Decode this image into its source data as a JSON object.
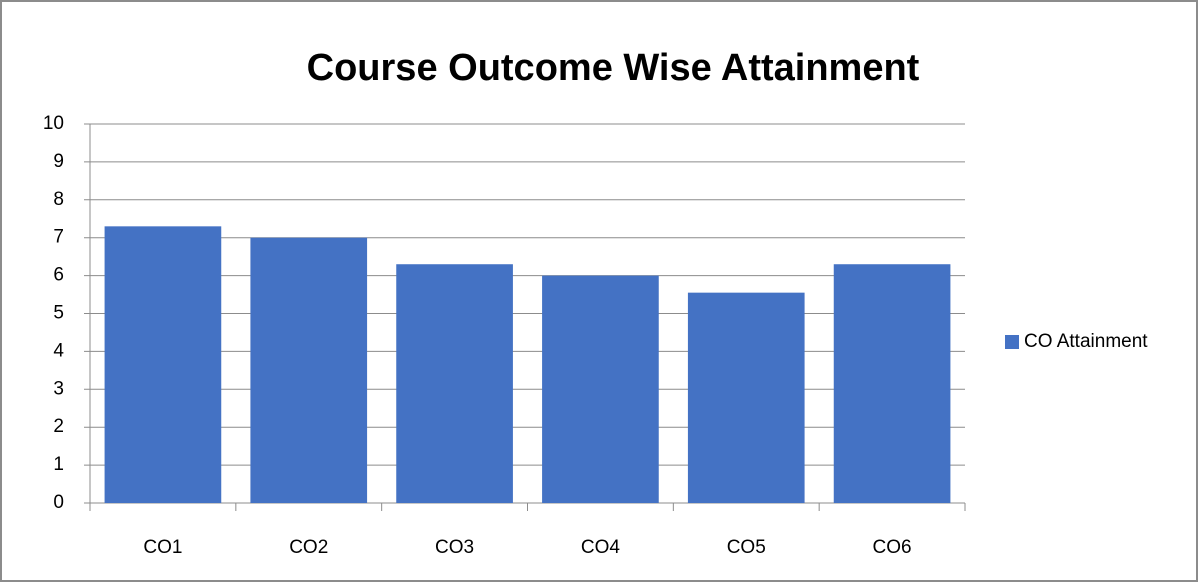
{
  "chart_data": {
    "type": "bar",
    "title": "Course Outcome Wise Attainment",
    "categories": [
      "CO1",
      "CO2",
      "CO3",
      "CO4",
      "CO5",
      "CO6"
    ],
    "series": [
      {
        "name": "CO Attainment",
        "color": "#4472c4",
        "values": [
          7.3,
          7.0,
          6.3,
          6.0,
          5.55,
          6.3
        ]
      }
    ],
    "ylim": [
      0,
      10
    ],
    "yticks": [
      0,
      1,
      2,
      3,
      4,
      5,
      6,
      7,
      8,
      9,
      10
    ],
    "grid": true,
    "legend": "right"
  }
}
